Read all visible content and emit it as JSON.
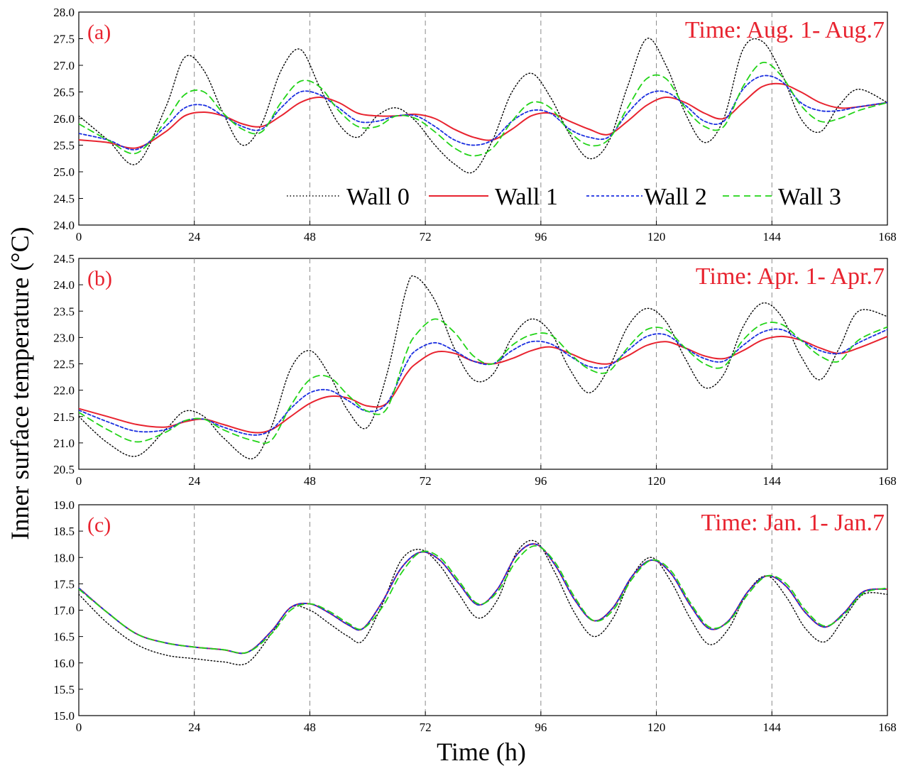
{
  "figure": {
    "ylabel": "Inner surface temperature (°C)",
    "xlabel": "Time (h)",
    "legend": [
      "Wall 0",
      "Wall 1",
      "Wall 2",
      "Wall 3"
    ]
  },
  "series_styles": [
    {
      "name": "Wall 0",
      "color": "#000000",
      "dash": "1.5,3",
      "width": 1.4
    },
    {
      "name": "Wall 1",
      "color": "#e8232f",
      "dash": "",
      "width": 2.0
    },
    {
      "name": "Wall 2",
      "color": "#1a2ee0",
      "dash": "4,3",
      "width": 1.8
    },
    {
      "name": "Wall 3",
      "color": "#22d418",
      "dash": "9,6",
      "width": 1.8
    }
  ],
  "chart_data": [
    {
      "type": "line",
      "tag": "(a)",
      "title": "Time: Aug. 1- Aug.7",
      "xlim": [
        0,
        168
      ],
      "ylim": [
        24.0,
        28.0
      ],
      "xticks": [
        0,
        24,
        48,
        72,
        96,
        120,
        144,
        168
      ],
      "yticks": [
        "24.0",
        "24.5",
        "25.0",
        "25.5",
        "26.0",
        "26.5",
        "27.0",
        "27.5",
        "28.0"
      ],
      "vlines": [
        24,
        48,
        72,
        96,
        120,
        144
      ],
      "x": [
        0,
        6,
        12,
        18,
        22,
        26,
        30,
        34,
        38,
        42,
        46,
        50,
        54,
        58,
        62,
        66,
        70,
        74,
        78,
        82,
        86,
        90,
        94,
        98,
        102,
        106,
        110,
        114,
        118,
        122,
        126,
        130,
        134,
        138,
        142,
        146,
        150,
        154,
        158,
        162,
        168
      ],
      "series": [
        {
          "name": "Wall 0",
          "values": [
            26.05,
            25.6,
            25.15,
            26.2,
            27.15,
            26.9,
            26.1,
            25.5,
            25.9,
            26.9,
            27.3,
            26.6,
            25.9,
            25.65,
            26.05,
            26.2,
            25.95,
            25.5,
            25.15,
            25.0,
            25.6,
            26.5,
            26.85,
            26.4,
            25.7,
            25.25,
            25.55,
            26.6,
            27.5,
            27.0,
            26.1,
            25.55,
            26.0,
            27.3,
            27.45,
            26.85,
            26.0,
            25.75,
            26.25,
            26.55,
            26.3
          ]
        },
        {
          "name": "Wall 1",
          "values": [
            25.6,
            25.55,
            25.45,
            25.75,
            26.05,
            26.12,
            26.05,
            25.9,
            25.85,
            26.05,
            26.3,
            26.4,
            26.3,
            26.1,
            26.05,
            26.05,
            26.08,
            26.0,
            25.8,
            25.65,
            25.6,
            25.8,
            26.05,
            26.1,
            25.95,
            25.8,
            25.7,
            25.95,
            26.25,
            26.4,
            26.3,
            26.1,
            26.0,
            26.3,
            26.6,
            26.65,
            26.5,
            26.3,
            26.2,
            26.22,
            26.3
          ]
        },
        {
          "name": "Wall 2",
          "values": [
            25.72,
            25.6,
            25.42,
            25.85,
            26.2,
            26.25,
            26.05,
            25.85,
            25.8,
            26.2,
            26.5,
            26.45,
            26.2,
            25.95,
            25.95,
            26.05,
            26.05,
            25.85,
            25.6,
            25.5,
            25.6,
            25.95,
            26.15,
            26.1,
            25.8,
            25.65,
            25.65,
            26.1,
            26.45,
            26.5,
            26.25,
            25.95,
            25.95,
            26.55,
            26.8,
            26.7,
            26.3,
            26.15,
            26.15,
            26.22,
            26.3
          ]
        },
        {
          "name": "Wall 3",
          "values": [
            25.9,
            25.6,
            25.35,
            25.95,
            26.45,
            26.5,
            26.1,
            25.8,
            25.75,
            26.3,
            26.7,
            26.6,
            26.15,
            25.85,
            25.85,
            26.05,
            26.0,
            25.75,
            25.45,
            25.3,
            25.45,
            25.95,
            26.3,
            26.2,
            25.75,
            25.5,
            25.6,
            26.2,
            26.75,
            26.75,
            26.2,
            25.85,
            25.85,
            26.6,
            27.05,
            26.8,
            26.25,
            25.95,
            26.0,
            26.15,
            26.3
          ]
        }
      ]
    },
    {
      "type": "line",
      "tag": "(b)",
      "title": "Time: Apr. 1- Apr.7",
      "xlim": [
        0,
        168
      ],
      "ylim": [
        20.5,
        24.5
      ],
      "xticks": [
        0,
        24,
        48,
        72,
        96,
        120,
        144,
        168
      ],
      "yticks": [
        "20.5",
        "21.0",
        "21.5",
        "22.0",
        "22.5",
        "23.0",
        "23.5",
        "24.0",
        "24.5"
      ],
      "vlines": [
        24,
        48,
        72,
        96,
        120,
        144
      ],
      "x": [
        0,
        6,
        12,
        18,
        22,
        26,
        30,
        36,
        40,
        44,
        48,
        52,
        56,
        60,
        64,
        68,
        70,
        74,
        78,
        82,
        86,
        90,
        94,
        98,
        102,
        106,
        110,
        114,
        118,
        122,
        126,
        130,
        134,
        138,
        142,
        146,
        150,
        154,
        158,
        162,
        168
      ],
      "series": [
        {
          "name": "Wall 0",
          "values": [
            21.5,
            21.0,
            20.75,
            21.25,
            21.6,
            21.5,
            21.1,
            20.7,
            21.3,
            22.4,
            22.75,
            22.3,
            21.6,
            21.3,
            22.3,
            23.9,
            24.15,
            23.7,
            22.8,
            22.2,
            22.3,
            23.0,
            23.35,
            23.1,
            22.4,
            21.95,
            22.4,
            23.2,
            23.55,
            23.3,
            22.6,
            22.05,
            22.3,
            23.2,
            23.65,
            23.4,
            22.65,
            22.2,
            22.8,
            23.5,
            23.4
          ]
        },
        {
          "name": "Wall 1",
          "values": [
            21.65,
            21.5,
            21.35,
            21.3,
            21.4,
            21.45,
            21.35,
            21.2,
            21.25,
            21.5,
            21.75,
            21.88,
            21.85,
            21.7,
            21.75,
            22.3,
            22.5,
            22.72,
            22.7,
            22.55,
            22.5,
            22.6,
            22.75,
            22.82,
            22.7,
            22.55,
            22.5,
            22.65,
            22.85,
            22.92,
            22.8,
            22.65,
            22.6,
            22.75,
            22.95,
            23.02,
            22.95,
            22.8,
            22.7,
            22.8,
            23.02
          ]
        },
        {
          "name": "Wall 2",
          "values": [
            21.62,
            21.4,
            21.22,
            21.25,
            21.42,
            21.45,
            21.3,
            21.15,
            21.25,
            21.65,
            21.95,
            22.0,
            21.8,
            21.6,
            21.75,
            22.5,
            22.75,
            22.9,
            22.75,
            22.55,
            22.5,
            22.75,
            22.92,
            22.88,
            22.65,
            22.45,
            22.45,
            22.75,
            23.02,
            23.05,
            22.8,
            22.6,
            22.55,
            22.85,
            23.1,
            23.15,
            22.95,
            22.75,
            22.7,
            22.9,
            23.15
          ]
        },
        {
          "name": "Wall 3",
          "values": [
            21.58,
            21.25,
            21.02,
            21.2,
            21.42,
            21.45,
            21.25,
            21.05,
            21.05,
            21.7,
            22.2,
            22.25,
            21.9,
            21.6,
            21.65,
            22.7,
            23.05,
            23.35,
            23.1,
            22.65,
            22.5,
            22.85,
            23.05,
            23.05,
            22.7,
            22.4,
            22.35,
            22.8,
            23.15,
            23.15,
            22.8,
            22.5,
            22.45,
            22.95,
            23.25,
            23.25,
            22.95,
            22.65,
            22.55,
            22.95,
            23.2
          ]
        }
      ]
    },
    {
      "type": "line",
      "tag": "(c)",
      "title": "Time: Jan. 1- Jan.7",
      "xlim": [
        0,
        168
      ],
      "ylim": [
        15.0,
        19.0
      ],
      "xticks": [
        0,
        24,
        48,
        72,
        96,
        120,
        144,
        168
      ],
      "yticks": [
        "15.0",
        "15.5",
        "16.0",
        "16.5",
        "17.0",
        "17.5",
        "18.0",
        "18.5",
        "19.0"
      ],
      "vlines": [
        24,
        48,
        72,
        96,
        120,
        144
      ],
      "x": [
        0,
        6,
        12,
        18,
        24,
        30,
        35,
        40,
        44,
        48,
        52,
        56,
        59,
        63,
        67,
        71,
        75,
        79,
        83,
        87,
        91,
        95,
        99,
        103,
        107,
        111,
        115,
        119,
        123,
        127,
        131,
        135,
        139,
        143,
        147,
        151,
        155,
        159,
        163,
        168
      ],
      "series": [
        {
          "name": "Wall 0",
          "values": [
            17.3,
            16.75,
            16.35,
            16.15,
            16.08,
            16.02,
            16.0,
            16.55,
            17.05,
            17.0,
            16.75,
            16.5,
            16.42,
            17.1,
            17.95,
            18.15,
            17.85,
            17.3,
            16.85,
            17.2,
            18.1,
            18.3,
            17.7,
            16.95,
            16.5,
            16.85,
            17.65,
            18.0,
            17.55,
            16.85,
            16.35,
            16.65,
            17.35,
            17.65,
            17.25,
            16.65,
            16.4,
            16.85,
            17.3,
            17.3
          ]
        },
        {
          "name": "Wall 1",
          "values": [
            17.42,
            16.95,
            16.55,
            16.38,
            16.3,
            16.25,
            16.2,
            16.6,
            17.05,
            17.12,
            16.95,
            16.72,
            16.65,
            17.15,
            17.8,
            18.1,
            17.95,
            17.5,
            17.1,
            17.4,
            18.05,
            18.25,
            17.85,
            17.2,
            16.8,
            17.05,
            17.65,
            17.95,
            17.7,
            17.1,
            16.65,
            16.8,
            17.35,
            17.65,
            17.45,
            16.95,
            16.68,
            16.95,
            17.35,
            17.4
          ]
        },
        {
          "name": "Wall 2",
          "values": [
            17.42,
            16.95,
            16.55,
            16.38,
            16.3,
            16.25,
            16.2,
            16.6,
            17.05,
            17.12,
            16.95,
            16.72,
            16.65,
            17.15,
            17.8,
            18.1,
            17.95,
            17.5,
            17.1,
            17.4,
            18.05,
            18.25,
            17.85,
            17.2,
            16.8,
            17.05,
            17.65,
            17.95,
            17.7,
            17.1,
            16.65,
            16.8,
            17.35,
            17.65,
            17.45,
            16.95,
            16.68,
            16.95,
            17.35,
            17.4
          ]
        },
        {
          "name": "Wall 3",
          "values": [
            17.4,
            16.95,
            16.55,
            16.38,
            16.3,
            16.25,
            16.2,
            16.55,
            17.0,
            17.12,
            16.98,
            16.75,
            16.65,
            17.05,
            17.7,
            18.1,
            18.0,
            17.55,
            17.12,
            17.35,
            17.95,
            18.22,
            17.9,
            17.25,
            16.8,
            17.0,
            17.6,
            17.95,
            17.75,
            17.15,
            16.68,
            16.78,
            17.3,
            17.65,
            17.5,
            17.0,
            16.7,
            16.92,
            17.32,
            17.42
          ]
        }
      ]
    }
  ]
}
